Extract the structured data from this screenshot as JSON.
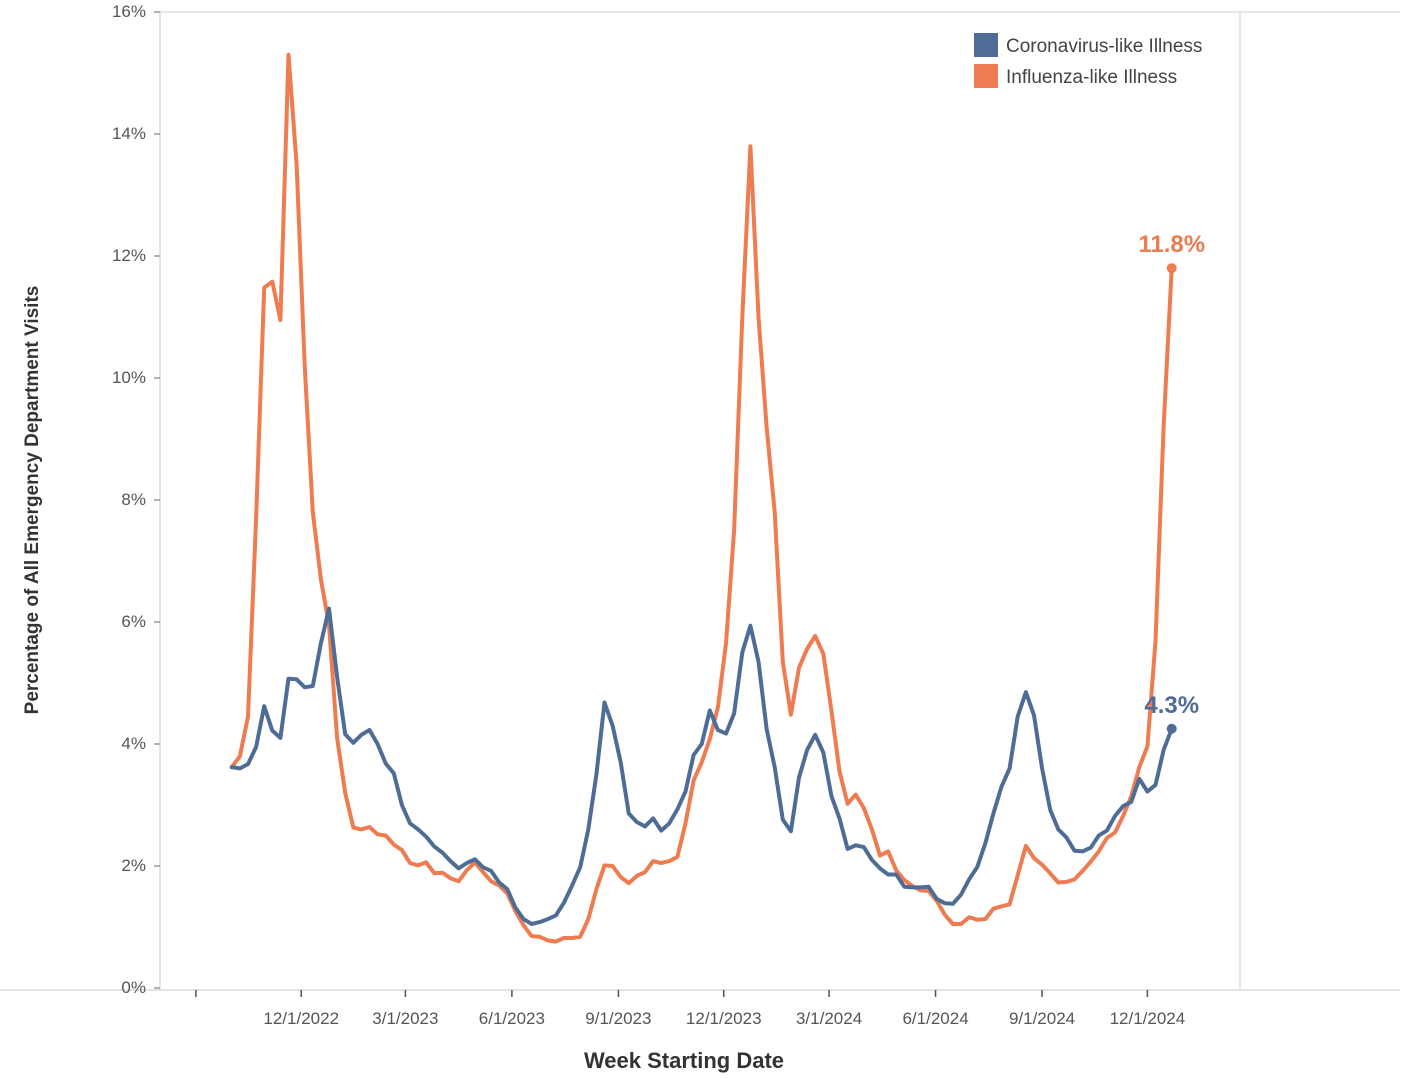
{
  "chart_data": {
    "type": "line",
    "title": "",
    "xlabel": "Week Starting Date",
    "ylabel": "Percentage of All Emergency Department Visits",
    "ylim": [
      0,
      16
    ],
    "yticks": [
      0,
      2,
      4,
      6,
      8,
      10,
      12,
      14,
      16
    ],
    "ytick_labels": [
      "0%",
      "2%",
      "4%",
      "6%",
      "8%",
      "10%",
      "12%",
      "14%",
      "16%"
    ],
    "xlim": [
      "2022-08-01",
      "2025-02-19"
    ],
    "xticks": [
      "2022-12-01",
      "2023-03-01",
      "2023-06-01",
      "2023-09-01",
      "2023-12-01",
      "2024-03-01",
      "2024-06-01",
      "2024-09-01",
      "2024-12-01"
    ],
    "xtick_labels": [
      "12/1/2022",
      "3/1/2023",
      "6/1/2023",
      "9/1/2023",
      "12/1/2023",
      "3/1/2024",
      "6/1/2024",
      "9/1/2024",
      "12/1/2024"
    ],
    "grid": false,
    "legend_position": "top-right",
    "series": [
      {
        "name": "Coronavirus-like Illness",
        "color": "#4e6d96",
        "end_label": "4.3%",
        "points": [
          [
            "2022-10-02",
            3.62
          ],
          [
            "2022-10-09",
            3.6
          ],
          [
            "2022-10-16",
            3.67
          ],
          [
            "2022-10-23",
            3.95
          ],
          [
            "2022-10-30",
            4.62
          ],
          [
            "2022-11-06",
            4.22
          ],
          [
            "2022-11-13",
            4.1
          ],
          [
            "2022-11-20",
            5.07
          ],
          [
            "2022-11-27",
            5.06
          ],
          [
            "2022-12-04",
            4.93
          ],
          [
            "2022-12-11",
            4.95
          ],
          [
            "2022-12-18",
            5.65
          ],
          [
            "2022-12-25",
            6.22
          ],
          [
            "2023-01-01",
            5.1
          ],
          [
            "2023-01-08",
            4.16
          ],
          [
            "2023-01-15",
            4.02
          ],
          [
            "2023-01-22",
            4.15
          ],
          [
            "2023-01-29",
            4.23
          ],
          [
            "2023-02-05",
            4.0
          ],
          [
            "2023-02-12",
            3.68
          ],
          [
            "2023-02-19",
            3.52
          ],
          [
            "2023-02-26",
            3.0
          ],
          [
            "2023-03-05",
            2.7
          ],
          [
            "2023-03-12",
            2.6
          ],
          [
            "2023-03-19",
            2.48
          ],
          [
            "2023-03-26",
            2.32
          ],
          [
            "2023-04-02",
            2.22
          ],
          [
            "2023-04-09",
            2.08
          ],
          [
            "2023-04-16",
            1.96
          ],
          [
            "2023-04-23",
            2.05
          ],
          [
            "2023-04-30",
            2.11
          ],
          [
            "2023-05-07",
            1.98
          ],
          [
            "2023-05-14",
            1.92
          ],
          [
            "2023-05-21",
            1.73
          ],
          [
            "2023-05-28",
            1.62
          ],
          [
            "2023-06-04",
            1.32
          ],
          [
            "2023-06-11",
            1.13
          ],
          [
            "2023-06-18",
            1.05
          ],
          [
            "2023-06-25",
            1.08
          ],
          [
            "2023-07-02",
            1.13
          ],
          [
            "2023-07-09",
            1.19
          ],
          [
            "2023-07-16",
            1.4
          ],
          [
            "2023-07-23",
            1.68
          ],
          [
            "2023-07-30",
            1.98
          ],
          [
            "2023-08-06",
            2.6
          ],
          [
            "2023-08-13",
            3.5
          ],
          [
            "2023-08-20",
            4.68
          ],
          [
            "2023-08-27",
            4.3
          ],
          [
            "2023-09-03",
            3.7
          ],
          [
            "2023-09-10",
            2.86
          ],
          [
            "2023-09-17",
            2.72
          ],
          [
            "2023-09-24",
            2.65
          ],
          [
            "2023-10-01",
            2.78
          ],
          [
            "2023-10-08",
            2.58
          ],
          [
            "2023-10-15",
            2.7
          ],
          [
            "2023-10-22",
            2.93
          ],
          [
            "2023-10-29",
            3.22
          ],
          [
            "2023-11-05",
            3.82
          ],
          [
            "2023-11-12",
            4.0
          ],
          [
            "2023-11-19",
            4.55
          ],
          [
            "2023-11-26",
            4.23
          ],
          [
            "2023-12-03",
            4.17
          ],
          [
            "2023-12-10",
            4.5
          ],
          [
            "2023-12-17",
            5.5
          ],
          [
            "2023-12-24",
            5.94
          ],
          [
            "2023-12-31",
            5.35
          ],
          [
            "2024-01-07",
            4.25
          ],
          [
            "2024-01-14",
            3.62
          ],
          [
            "2024-01-21",
            2.76
          ],
          [
            "2024-01-28",
            2.57
          ],
          [
            "2024-02-04",
            3.45
          ],
          [
            "2024-02-11",
            3.9
          ],
          [
            "2024-02-18",
            4.15
          ],
          [
            "2024-02-25",
            3.86
          ],
          [
            "2024-03-03",
            3.15
          ],
          [
            "2024-03-10",
            2.78
          ],
          [
            "2024-03-17",
            2.28
          ],
          [
            "2024-03-24",
            2.34
          ],
          [
            "2024-03-31",
            2.31
          ],
          [
            "2024-04-07",
            2.1
          ],
          [
            "2024-04-14",
            1.96
          ],
          [
            "2024-04-21",
            1.86
          ],
          [
            "2024-04-28",
            1.86
          ],
          [
            "2024-05-05",
            1.66
          ],
          [
            "2024-05-12",
            1.65
          ],
          [
            "2024-05-19",
            1.65
          ],
          [
            "2024-05-26",
            1.66
          ],
          [
            "2024-06-02",
            1.46
          ],
          [
            "2024-06-09",
            1.39
          ],
          [
            "2024-06-16",
            1.38
          ],
          [
            "2024-06-23",
            1.53
          ],
          [
            "2024-06-30",
            1.78
          ],
          [
            "2024-07-07",
            1.98
          ],
          [
            "2024-07-14",
            2.37
          ],
          [
            "2024-07-21",
            2.86
          ],
          [
            "2024-07-28",
            3.3
          ],
          [
            "2024-08-04",
            3.6
          ],
          [
            "2024-08-11",
            4.45
          ],
          [
            "2024-08-18",
            4.85
          ],
          [
            "2024-08-25",
            4.47
          ],
          [
            "2024-09-01",
            3.6
          ],
          [
            "2024-09-08",
            2.92
          ],
          [
            "2024-09-15",
            2.6
          ],
          [
            "2024-09-22",
            2.47
          ],
          [
            "2024-09-29",
            2.25
          ],
          [
            "2024-10-06",
            2.24
          ],
          [
            "2024-10-13",
            2.3
          ],
          [
            "2024-10-20",
            2.5
          ],
          [
            "2024-10-27",
            2.58
          ],
          [
            "2024-11-03",
            2.82
          ],
          [
            "2024-11-10",
            2.98
          ],
          [
            "2024-11-17",
            3.05
          ],
          [
            "2024-11-24",
            3.43
          ],
          [
            "2024-12-01",
            3.22
          ],
          [
            "2024-12-08",
            3.33
          ],
          [
            "2024-12-15",
            3.9
          ],
          [
            "2024-12-22",
            4.25
          ]
        ]
      },
      {
        "name": "Influenza-like Illness",
        "color": "#ef7b50",
        "end_label": "11.8%",
        "points": [
          [
            "2022-10-02",
            3.62
          ],
          [
            "2022-10-09",
            3.8
          ],
          [
            "2022-10-16",
            4.45
          ],
          [
            "2022-10-23",
            7.7
          ],
          [
            "2022-10-30",
            11.48
          ],
          [
            "2022-11-06",
            11.58
          ],
          [
            "2022-11-13",
            10.95
          ],
          [
            "2022-11-20",
            15.3
          ],
          [
            "2022-11-27",
            13.5
          ],
          [
            "2022-12-04",
            10.2
          ],
          [
            "2022-12-11",
            7.8
          ],
          [
            "2022-12-18",
            6.7
          ],
          [
            "2022-12-25",
            5.95
          ],
          [
            "2023-01-01",
            4.1
          ],
          [
            "2023-01-08",
            3.2
          ],
          [
            "2023-01-15",
            2.63
          ],
          [
            "2023-01-22",
            2.6
          ],
          [
            "2023-01-29",
            2.64
          ],
          [
            "2023-02-05",
            2.52
          ],
          [
            "2023-02-12",
            2.5
          ],
          [
            "2023-02-19",
            2.35
          ],
          [
            "2023-02-26",
            2.26
          ],
          [
            "2023-03-05",
            2.05
          ],
          [
            "2023-03-12",
            2.01
          ],
          [
            "2023-03-19",
            2.06
          ],
          [
            "2023-03-26",
            1.88
          ],
          [
            "2023-04-02",
            1.89
          ],
          [
            "2023-04-09",
            1.8
          ],
          [
            "2023-04-16",
            1.75
          ],
          [
            "2023-04-23",
            1.93
          ],
          [
            "2023-04-30",
            2.06
          ],
          [
            "2023-05-07",
            1.9
          ],
          [
            "2023-05-14",
            1.75
          ],
          [
            "2023-05-21",
            1.68
          ],
          [
            "2023-05-28",
            1.55
          ],
          [
            "2023-06-04",
            1.26
          ],
          [
            "2023-06-11",
            1.03
          ],
          [
            "2023-06-18",
            0.85
          ],
          [
            "2023-06-25",
            0.84
          ],
          [
            "2023-07-02",
            0.78
          ],
          [
            "2023-07-09",
            0.76
          ],
          [
            "2023-07-16",
            0.82
          ],
          [
            "2023-07-23",
            0.82
          ],
          [
            "2023-07-30",
            0.84
          ],
          [
            "2023-08-06",
            1.13
          ],
          [
            "2023-08-13",
            1.62
          ],
          [
            "2023-08-20",
            2.01
          ],
          [
            "2023-08-27",
            2.0
          ],
          [
            "2023-09-03",
            1.82
          ],
          [
            "2023-09-10",
            1.72
          ],
          [
            "2023-09-17",
            1.84
          ],
          [
            "2023-09-24",
            1.9
          ],
          [
            "2023-10-01",
            2.08
          ],
          [
            "2023-10-08",
            2.05
          ],
          [
            "2023-10-15",
            2.08
          ],
          [
            "2023-10-22",
            2.15
          ],
          [
            "2023-10-29",
            2.7
          ],
          [
            "2023-11-05",
            3.4
          ],
          [
            "2023-11-12",
            3.7
          ],
          [
            "2023-11-19",
            4.08
          ],
          [
            "2023-11-26",
            4.6
          ],
          [
            "2023-12-03",
            5.65
          ],
          [
            "2023-12-10",
            7.5
          ],
          [
            "2023-12-17",
            11.0
          ],
          [
            "2023-12-24",
            13.8
          ],
          [
            "2023-12-31",
            11.0
          ],
          [
            "2024-01-07",
            9.2
          ],
          [
            "2024-01-14",
            7.8
          ],
          [
            "2024-01-21",
            5.35
          ],
          [
            "2024-01-28",
            4.48
          ],
          [
            "2024-02-04",
            5.25
          ],
          [
            "2024-02-11",
            5.56
          ],
          [
            "2024-02-18",
            5.77
          ],
          [
            "2024-02-25",
            5.48
          ],
          [
            "2024-03-03",
            4.55
          ],
          [
            "2024-03-10",
            3.55
          ],
          [
            "2024-03-17",
            3.02
          ],
          [
            "2024-03-24",
            3.17
          ],
          [
            "2024-03-31",
            2.95
          ],
          [
            "2024-04-07",
            2.6
          ],
          [
            "2024-04-14",
            2.17
          ],
          [
            "2024-04-21",
            2.24
          ],
          [
            "2024-04-28",
            1.93
          ],
          [
            "2024-05-05",
            1.77
          ],
          [
            "2024-05-12",
            1.67
          ],
          [
            "2024-05-19",
            1.6
          ],
          [
            "2024-05-26",
            1.59
          ],
          [
            "2024-06-02",
            1.43
          ],
          [
            "2024-06-09",
            1.2
          ],
          [
            "2024-06-16",
            1.05
          ],
          [
            "2024-06-23",
            1.05
          ],
          [
            "2024-06-30",
            1.16
          ],
          [
            "2024-07-07",
            1.12
          ],
          [
            "2024-07-14",
            1.13
          ],
          [
            "2024-07-21",
            1.3
          ],
          [
            "2024-07-28",
            1.34
          ],
          [
            "2024-08-04",
            1.37
          ],
          [
            "2024-08-11",
            1.85
          ],
          [
            "2024-08-18",
            2.33
          ],
          [
            "2024-08-25",
            2.13
          ],
          [
            "2024-09-01",
            2.02
          ],
          [
            "2024-09-08",
            1.88
          ],
          [
            "2024-09-15",
            1.73
          ],
          [
            "2024-09-22",
            1.74
          ],
          [
            "2024-09-29",
            1.78
          ],
          [
            "2024-10-06",
            1.92
          ],
          [
            "2024-10-13",
            2.07
          ],
          [
            "2024-10-20",
            2.24
          ],
          [
            "2024-10-27",
            2.46
          ],
          [
            "2024-11-03",
            2.55
          ],
          [
            "2024-11-10",
            2.82
          ],
          [
            "2024-11-17",
            3.14
          ],
          [
            "2024-11-24",
            3.62
          ],
          [
            "2024-12-01",
            3.96
          ],
          [
            "2024-12-08",
            5.68
          ],
          [
            "2024-12-15",
            9.2
          ],
          [
            "2024-12-22",
            11.8
          ]
        ]
      }
    ]
  }
}
